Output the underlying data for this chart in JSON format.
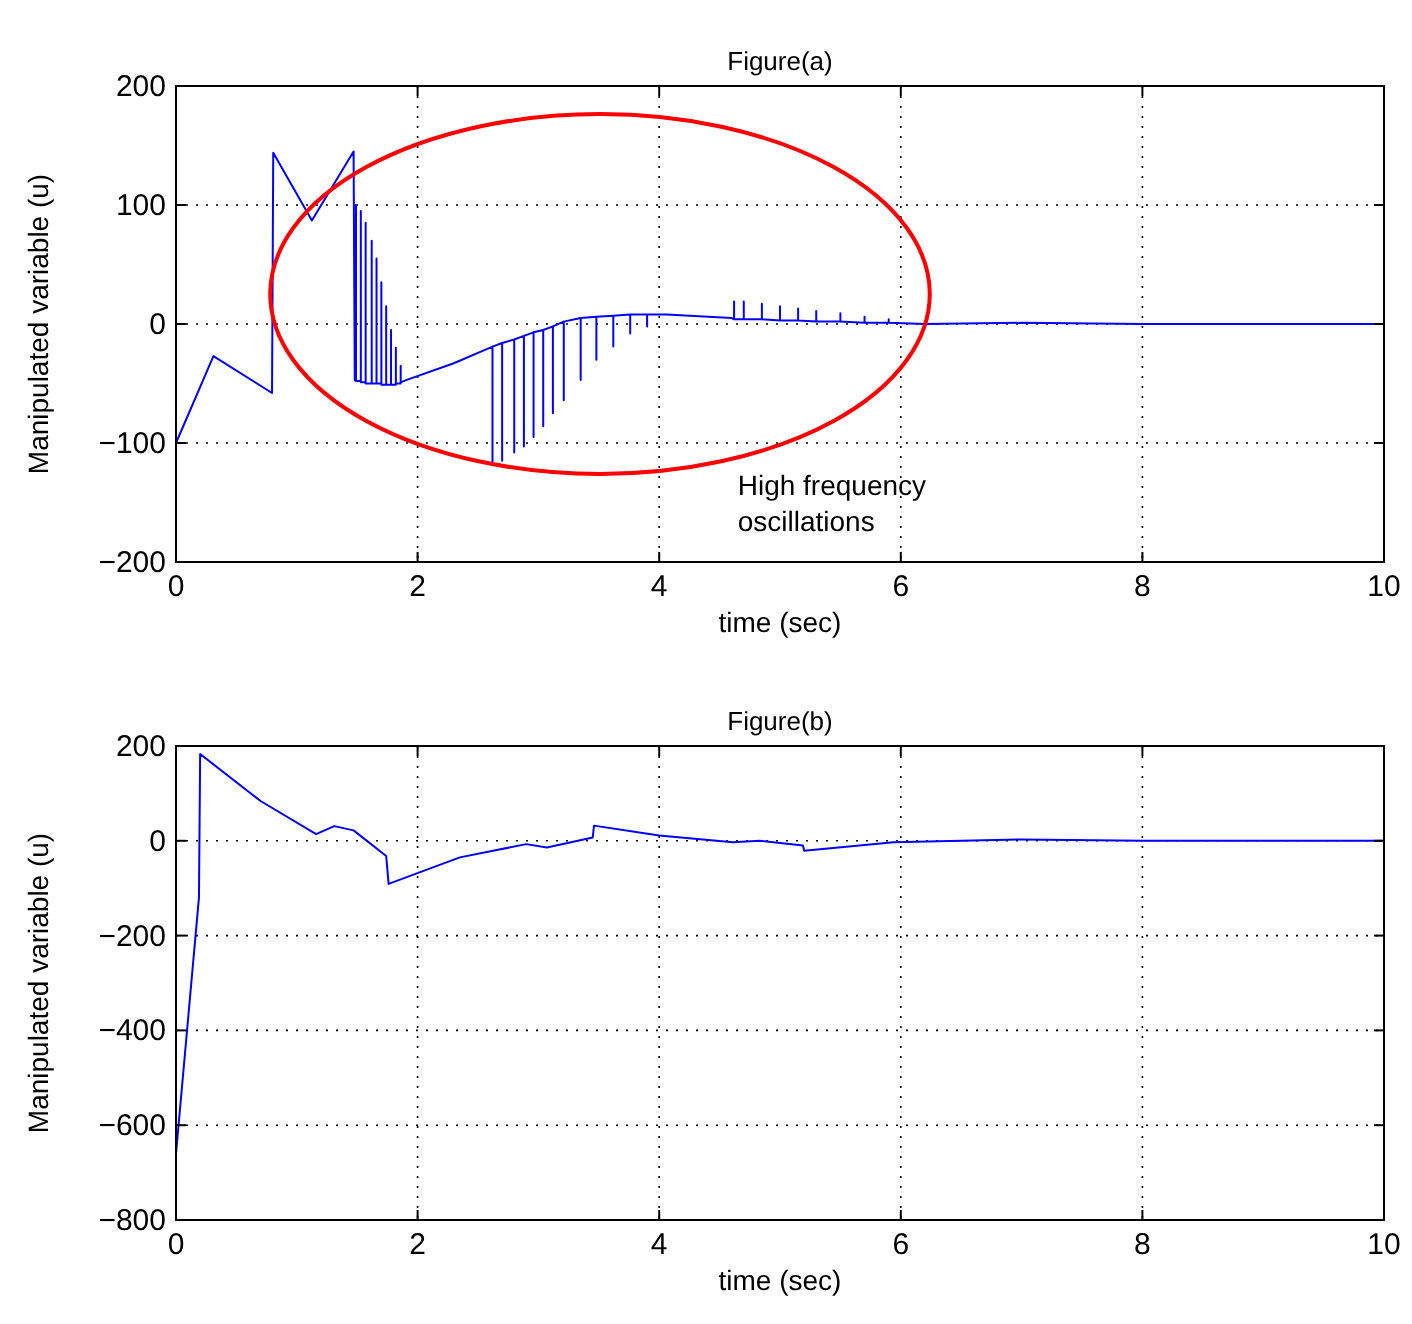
{
  "chart_data": [
    {
      "type": "line",
      "title": "Figure(a)",
      "xlabel": "time (sec)",
      "ylabel": "Manipulated variable (u)",
      "annotations": [
        "High frequency oscillations"
      ],
      "xlim": [
        0,
        10
      ],
      "ylim": [
        -200,
        200
      ],
      "xticks": [
        0,
        2,
        4,
        6,
        8,
        10
      ],
      "yticks": [
        -200,
        -100,
        0,
        100,
        200
      ],
      "grid": true,
      "series": [
        {
          "color": "#0000ff",
          "x": [
            0,
            0.31,
            0.795,
            0.805,
            1.125,
            1.47,
            1.48,
            1.49,
            1.49,
            1.49,
            1.53,
            1.53,
            1.53,
            1.57,
            1.57,
            1.57,
            1.62,
            1.62,
            1.62,
            1.66,
            1.66,
            1.66,
            1.7,
            1.7,
            1.7,
            1.74,
            1.74,
            1.74,
            1.78,
            1.78,
            1.78,
            1.82,
            1.82,
            1.82,
            1.86,
            1.86,
            1.86,
            1.91,
            2.3,
            2.62,
            2.62,
            2.62,
            2.7,
            2.7,
            2.7,
            2.8,
            2.8,
            2.8,
            2.88,
            2.88,
            2.88,
            2.96,
            2.96,
            2.96,
            3.04,
            3.04,
            3.04,
            3.12,
            3.12,
            3.12,
            3.21,
            3.21,
            3.21,
            3.35,
            3.35,
            3.35,
            3.48,
            3.48,
            3.48,
            3.62,
            3.62,
            3.62,
            3.76,
            3.76,
            3.76,
            3.9,
            3.9,
            3.9,
            4.06,
            4.6,
            4.62,
            4.62,
            4.62,
            4.7,
            4.7,
            4.7,
            4.85,
            4.85,
            4.85,
            5,
            5,
            5,
            5.15,
            5.15,
            5.15,
            5.3,
            5.3,
            5.3,
            5.5,
            5.5,
            5.5,
            5.7,
            5.7,
            5.7,
            5.9,
            5.9,
            5.9,
            6.2,
            7,
            8,
            10
          ],
          "values": [
            -100,
            -27,
            -58,
            144,
            87,
            145,
            -47,
            -48,
            100,
            -48,
            -48,
            95,
            -49,
            -49,
            85,
            -50,
            -50,
            70,
            -50,
            -50,
            55,
            -50,
            -50,
            35,
            -51,
            -51,
            15,
            -51,
            -51,
            -5,
            -51,
            -51,
            -20,
            -50,
            -50,
            -35,
            -49,
            -47,
            -33,
            -19,
            -117,
            -19,
            -16,
            -115,
            -16,
            -13,
            -108,
            -13,
            -10,
            -103,
            -10,
            -7,
            -95,
            -7,
            -5,
            -86,
            -5,
            -2,
            -75,
            -2,
            2,
            -64,
            2,
            5,
            -47,
            5,
            6,
            -30,
            6,
            7,
            -19,
            7,
            8,
            -8,
            8,
            8,
            -2,
            8,
            8,
            5,
            4,
            19,
            4,
            4,
            19,
            4,
            4,
            17,
            4,
            3,
            15,
            3,
            3,
            13,
            3,
            2,
            11,
            2,
            2,
            9,
            2,
            1,
            6,
            1,
            1,
            4,
            1,
            0,
            1,
            0,
            0
          ]
        }
      ]
    },
    {
      "type": "line",
      "title": "Figure(b)",
      "xlabel": "time (sec)",
      "ylabel": "Manipulated variable (u)",
      "xlim": [
        0,
        10
      ],
      "ylim": [
        -800,
        200
      ],
      "xticks": [
        0,
        2,
        4,
        6,
        8,
        10
      ],
      "yticks": [
        -800,
        -600,
        -400,
        -200,
        0,
        200
      ],
      "grid": true,
      "series": [
        {
          "color": "#0000ff",
          "x": [
            0,
            0.19,
            0.2,
            0.7,
            1.16,
            1.31,
            1.47,
            1.74,
            1.76,
            2.35,
            2.9,
            3.07,
            3.45,
            3.46,
            4,
            4.61,
            4.83,
            5.19,
            5.2,
            5.94,
            7,
            8,
            10
          ],
          "values": [
            -660,
            -120,
            183,
            84,
            14,
            31,
            22,
            -32,
            -91,
            -35,
            -7,
            -14,
            7,
            32,
            11,
            -3,
            0,
            -10,
            -21,
            -3,
            3,
            0,
            0
          ]
        }
      ]
    }
  ]
}
